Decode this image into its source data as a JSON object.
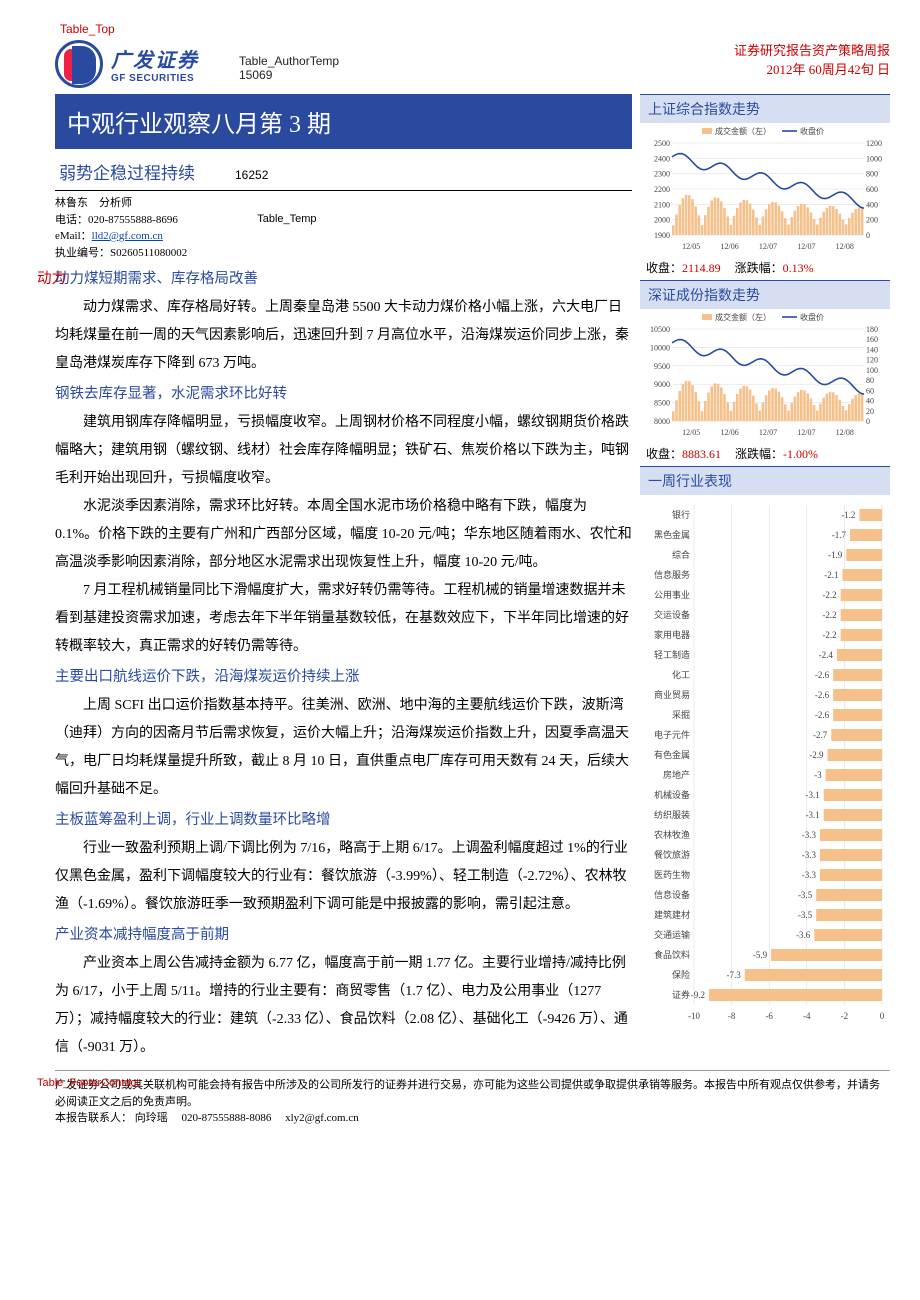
{
  "overlay": {
    "table_top": "Table_Top",
    "table_footer": "Table_FooterContact"
  },
  "header": {
    "logo_cn": "广发证券",
    "logo_en": "GF SECURITIES",
    "author_temp_label": "Table_AuthorTemp",
    "author_temp_code": "15069",
    "right_line1": "证券研究报告资产策略周报",
    "right_line2": "2012年 60周月42旬 日"
  },
  "title": "中观行业观察八月第 3 期",
  "subtitle": "弱势企稳过程持续",
  "subtitle_code": "16252",
  "analyst": {
    "name_line": "林鲁东　分析师",
    "phone_label": "电话：",
    "phone": "020-87555888-8696",
    "email_label": "eMail：",
    "email": "lld2@gf.com.cn",
    "license_label": "执业编号：",
    "license": "S0260511080002",
    "table_temp": "Table_Temp"
  },
  "sections": [
    {
      "head": "动力煤短期需求、库存格局改善",
      "head_overlay": true,
      "paras": [
        "动力煤需求、库存格局好转。上周秦皇岛港 5500 大卡动力煤价格小幅上涨，六大电厂日均耗煤量在前一周的天气因素影响后，迅速回升到 7 月高位水平，沿海煤炭运价同步上涨，秦皇岛港煤炭库存下降到 673 万吨。"
      ]
    },
    {
      "head": "钢铁去库存显著，水泥需求环比好转",
      "paras": [
        "建筑用钢库存降幅明显，亏损幅度收窄。上周钢材价格不同程度小幅，螺纹钢期货价格跌幅略大；建筑用钢（螺纹钢、线材）社会库存降幅明显；铁矿石、焦炭价格以下跌为主，吨钢毛利开始出现回升，亏损幅度收窄。",
        "水泥淡季因素消除，需求环比好转。本周全国水泥市场价格稳中略有下跌，幅度为 0.1%。价格下跌的主要有广州和广西部分区域，幅度 10-20 元/吨；华东地区随着雨水、农忙和高温淡季影响因素消除，部分地区水泥需求出现恢复性上升，幅度 10-20 元/吨。",
        "7 月工程机械销量同比下滑幅度扩大，需求好转仍需等待。工程机械的销量增速数据并未看到基建投资需求加速，考虑去年下半年销量基数较低，在基数效应下，下半年同比增速的好转概率较大，真正需求的好转仍需等待。"
      ]
    },
    {
      "head": "主要出口航线运价下跌，沿海煤炭运价持续上涨",
      "paras": [
        "上周 SCFI 出口运价指数基本持平。往美洲、欧洲、地中海的主要航线运价下跌，波斯湾（迪拜）方向的因斋月节后需求恢复，运价大幅上升；沿海煤炭运价指数上升，因夏季高温天气，电厂日均耗煤量提升所致，截止 8 月 10 日，直供重点电厂库存可用天数有 24 天，后续大幅回升基础不足。"
      ]
    },
    {
      "head": "主板蓝筹盈利上调，行业上调数量环比略增",
      "paras": [
        "行业一致盈利预期上调/下调比例为 7/16，略高于上期 6/17。上调盈利幅度超过 1%的行业仅黑色金属，盈利下调幅度较大的行业有：餐饮旅游（-3.99%）、轻工制造（-2.72%）、农林牧渔（-1.69%）。餐饮旅游旺季一致预期盈利下调可能是中报披露的影响，需引起注意。"
      ]
    },
    {
      "head": "产业资本减持幅度高于前期",
      "paras": [
        "产业资本上周公告减持金额为 6.77 亿，幅度高于前一期 1.77 亿。主要行业增持/减持比例为 6/17，小于上周 5/11。增持的行业主要有：商贸零售（1.7 亿）、电力及公用事业（1277 万）；减持幅度较大的行业：建筑（-2.33 亿）、食品饮料（2.08 亿）、基础化工（-9426 万）、通信（-9031 万）。"
      ]
    }
  ],
  "side": {
    "panel1": {
      "title": "上证综合指数走势",
      "legend_bar": "成交金额（左）",
      "legend_line": "收盘价",
      "y_left": [
        1900,
        2000,
        2100,
        2200,
        2300,
        2400,
        2500
      ],
      "y_right": [
        0,
        200,
        400,
        600,
        800,
        1000,
        1200
      ],
      "x_labels": [
        "12/05",
        "12/06",
        "12/07",
        "12/07",
        "12/08"
      ],
      "bar_color": "#f5c08a",
      "line_color": "#2a4aa0",
      "grid_color": "#d8d8d8",
      "close_label": "收盘：",
      "close_val": "2114.89",
      "chg_label": "涨跌幅：",
      "chg_val": "0.13%"
    },
    "panel2": {
      "title": "深证成份指数走势",
      "legend_bar": "成交金额（左）",
      "legend_line": "收盘价",
      "y_left": [
        8000,
        8500,
        9000,
        9500,
        10000,
        10500
      ],
      "y_right": [
        0,
        20,
        40,
        60,
        80,
        100,
        120,
        140,
        160,
        180
      ],
      "x_labels": [
        "12/05",
        "12/06",
        "12/07",
        "12/07",
        "12/08"
      ],
      "bar_color": "#f5c08a",
      "line_color": "#2a4aa0",
      "grid_color": "#d8d8d8",
      "close_label": "收盘：",
      "close_val": "8883.61",
      "chg_label": "涨跌幅：",
      "chg_val": "-1.00%"
    },
    "panel3": {
      "title": "一周行业表现",
      "bar_color": "#f5c08a",
      "grid_color": "#d8d8d8",
      "x_ticks": [
        -10,
        -8,
        -6,
        -4,
        -2,
        0
      ],
      "rows": [
        {
          "label": "银行",
          "val": -1.2
        },
        {
          "label": "黑色金属",
          "val": -1.7
        },
        {
          "label": "综合",
          "val": -1.9
        },
        {
          "label": "信息服务",
          "val": -2.1
        },
        {
          "label": "公用事业",
          "val": -2.2
        },
        {
          "label": "交运设备",
          "val": -2.2
        },
        {
          "label": "家用电器",
          "val": -2.2
        },
        {
          "label": "轻工制造",
          "val": -2.4
        },
        {
          "label": "化工",
          "val": -2.6
        },
        {
          "label": "商业贸易",
          "val": -2.6
        },
        {
          "label": "采掘",
          "val": -2.6
        },
        {
          "label": "电子元件",
          "val": -2.7
        },
        {
          "label": "有色金属",
          "val": -2.9
        },
        {
          "label": "房地产",
          "val": -3.0
        },
        {
          "label": "机械设备",
          "val": -3.1
        },
        {
          "label": "纺织服装",
          "val": -3.1
        },
        {
          "label": "农林牧渔",
          "val": -3.3
        },
        {
          "label": "餐饮旅游",
          "val": -3.3
        },
        {
          "label": "医药生物",
          "val": -3.3
        },
        {
          "label": "信息设备",
          "val": -3.5
        },
        {
          "label": "建筑建材",
          "val": -3.5
        },
        {
          "label": "交通运输",
          "val": -3.6
        },
        {
          "label": "食品饮料",
          "val": -5.9
        },
        {
          "label": "保险",
          "val": -7.3
        },
        {
          "label": "证券",
          "val": -9.2
        }
      ]
    }
  },
  "footer": {
    "line1": "广发证券公司或其关联机构可能会持有报告中所涉及的公司所发行的证券并进行交易，亦可能为这些公司提供或争取提供承销等服务。本报告中所有观点仅供参考，并请务必阅读正文之后的免责声明。",
    "line2_label": "本报告联系人：",
    "line2_name": "向玲瑶",
    "line2_phone": "020-87555888-8086",
    "line2_email": "xly2@gf.com.cn"
  }
}
